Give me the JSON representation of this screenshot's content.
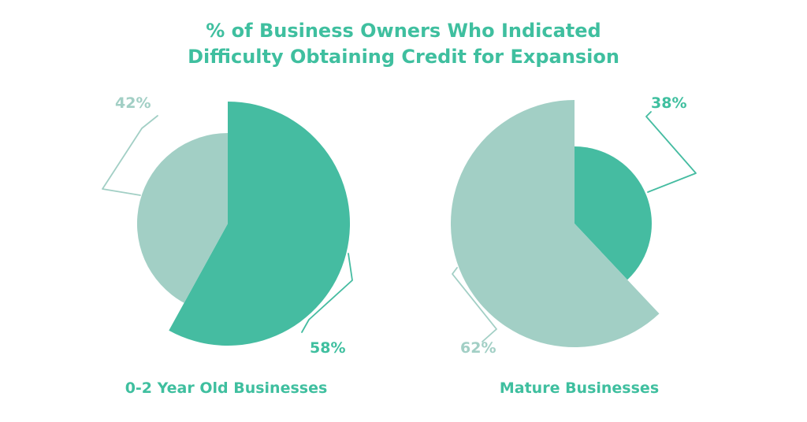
{
  "colors": {
    "primary": "#45bca1",
    "secondary": "#a2cfc5",
    "text_primary": "#3fbf9f",
    "text_secondary": "#a2cfc5"
  },
  "chart_data": {
    "type": "pie",
    "title": "% of Business Owners Who Indicated Difficulty Obtaining Credit for Expansion",
    "title_lines": [
      "% of Business Owners Who Indicated",
      "Difficulty Obtaining Credit for Expansion"
    ],
    "charts": [
      {
        "caption": "0-2 Year Old Businesses",
        "slices": [
          {
            "label": "58%",
            "value": 58,
            "color": "primary",
            "exploded": true
          },
          {
            "label": "42%",
            "value": 42,
            "color": "secondary",
            "exploded": false
          }
        ]
      },
      {
        "caption": "Mature Businesses",
        "slices": [
          {
            "label": "38%",
            "value": 38,
            "color": "primary",
            "exploded": false
          },
          {
            "label": "62%",
            "value": 62,
            "color": "secondary",
            "exploded": true
          }
        ]
      }
    ]
  }
}
